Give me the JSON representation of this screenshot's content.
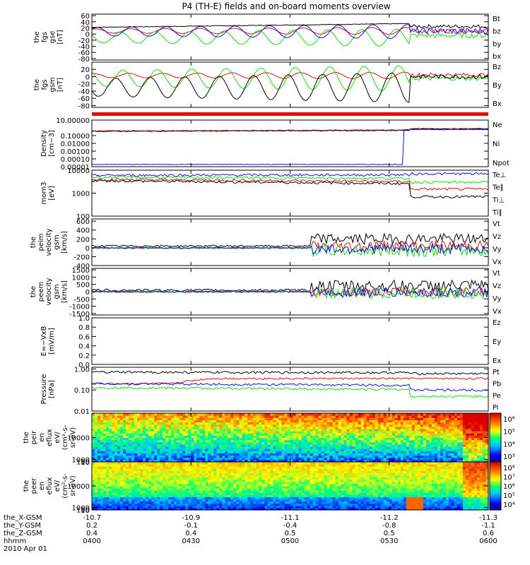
{
  "title": "P4 (TH-E) fields and on-board moments overview",
  "colors": {
    "black": "#000000",
    "red": "#e01010",
    "green": "#10dd10",
    "blue": "#1010e0"
  },
  "chart_data": [
    {
      "id": "fgs_gse",
      "type": "line",
      "ylabel": [
        "the",
        "fgs",
        "gse",
        "[nT]"
      ],
      "ylim": [
        -85,
        65
      ],
      "yticks": [
        60,
        40,
        20,
        0,
        -20,
        -40,
        -60,
        -80
      ],
      "series": [
        {
          "name": "Bt",
          "color": "black",
          "kind": "tot",
          "base": 22,
          "amp": 0,
          "noise": 2,
          "after": [
            25,
            6
          ]
        },
        {
          "name": "bz",
          "color": "red",
          "kind": "sin",
          "base": 10,
          "amp": 10,
          "phase": 0.8,
          "noise": 1,
          "after": [
            10,
            8
          ]
        },
        {
          "name": "by",
          "color": "green",
          "kind": "sin",
          "base": -12,
          "amp": 24,
          "phase": 2.6,
          "noise": 1,
          "after": [
            -5,
            8
          ]
        },
        {
          "name": "bx",
          "color": "blue",
          "kind": "sin",
          "base": 8,
          "amp": 20,
          "phase": 0.6,
          "noise": 1,
          "after": [
            10,
            10
          ]
        }
      ]
    },
    {
      "id": "fgs_gsm",
      "type": "line",
      "ylabel": [
        "the",
        "fgs",
        "gsm",
        "[nT]"
      ],
      "ylim": [
        -85,
        40
      ],
      "yticks": [
        20,
        0,
        -20,
        -40,
        -60,
        -80
      ],
      "series": [
        {
          "name": "Bz",
          "color": "red",
          "kind": "sin",
          "base": 3,
          "amp": 8,
          "phase": 1.2,
          "noise": 1,
          "after": [
            5,
            5
          ]
        },
        {
          "name": "By",
          "color": "green",
          "kind": "sin",
          "base": -5,
          "amp": 30,
          "phase": 2.2,
          "noise": 1,
          "after": [
            -5,
            6
          ]
        },
        {
          "name": "Bx",
          "color": "black",
          "kind": "sin",
          "base": -30,
          "amp": 35,
          "phase": 3.5,
          "noise": 1,
          "after": [
            0,
            6
          ]
        }
      ]
    },
    {
      "id": "density",
      "type": "line",
      "log": true,
      "ylabel": [
        "Density",
        "[cm−3]"
      ],
      "ylim": [
        1e-05,
        10
      ],
      "yticks": [
        10,
        0.1,
        0.01,
        0.001,
        0.0001,
        1e-05
      ],
      "yticklabels": [
        "10.00000",
        "0.10000",
        "0.01000",
        "0.00100",
        "0.00010",
        "0.00001"
      ],
      "series": [
        {
          "name": "Ne",
          "color": "red",
          "kind": "flat",
          "v": 0.4,
          "v2": 0.8
        },
        {
          "name": "Ni",
          "color": "black",
          "kind": "flat",
          "v": 0.35,
          "v2": 0.7
        },
        {
          "name": "Npot",
          "color": "blue",
          "kind": "jump",
          "v": 2e-05,
          "v2": 0.6
        }
      ]
    },
    {
      "id": "temp",
      "type": "line",
      "log": true,
      "ylabel": [
        "mom3",
        "[eV]"
      ],
      "ylim": [
        100,
        10000
      ],
      "yticks": [
        10000,
        1000,
        100
      ],
      "yticklabels": [
        "10000",
        "1000",
        "100"
      ],
      "series": [
        {
          "name": "Te⊥",
          "color": "red",
          "kind": "flat",
          "v": 4000,
          "v2": 1500
        },
        {
          "name": "Te∥",
          "color": "black",
          "kind": "flat",
          "v": 3500,
          "v2": 700
        },
        {
          "name": "Ti⊥",
          "color": "blue",
          "kind": "flat",
          "v": 6000,
          "v2": 7000
        },
        {
          "name": "Ti∥",
          "color": "green",
          "kind": "flat",
          "v": 5000,
          "v2": 3000
        }
      ]
    },
    {
      "id": "peim",
      "type": "line",
      "ylabel": [
        "the",
        "peim",
        "velocity",
        "gsm",
        "[km/s]"
      ],
      "ylim": [
        -400,
        650
      ],
      "yticks": [
        600,
        400,
        200,
        0,
        -200,
        -400
      ],
      "series": [
        {
          "name": "Vt",
          "color": "black",
          "kind": "vel",
          "v": 40,
          "v2": 200,
          "amp": 20,
          "amp2": 120
        },
        {
          "name": "Vz",
          "color": "red",
          "kind": "vel",
          "v": 0,
          "v2": 40,
          "amp": 15,
          "amp2": 120
        },
        {
          "name": "Vy",
          "color": "green",
          "kind": "vel",
          "v": -10,
          "v2": -60,
          "amp": 15,
          "amp2": 140
        },
        {
          "name": "Vx",
          "color": "blue",
          "kind": "vel",
          "v": 0,
          "v2": -20,
          "amp": 15,
          "amp2": 120
        }
      ]
    },
    {
      "id": "peem",
      "type": "line",
      "ylabel": [
        "the",
        "peem",
        "velocity",
        "gsm",
        "[km/s]"
      ],
      "ylim": [
        -1600,
        1600
      ],
      "yticks": [
        1500,
        1000,
        500,
        0,
        -500,
        -1000,
        -1500
      ],
      "series": [
        {
          "name": "Vt",
          "color": "black",
          "kind": "vel",
          "v": 100,
          "v2": 400,
          "amp": 80,
          "amp2": 400
        },
        {
          "name": "Vz",
          "color": "red",
          "kind": "vel",
          "v": 0,
          "v2": 0,
          "amp": 60,
          "amp2": 300
        },
        {
          "name": "Vy",
          "color": "green",
          "kind": "vel",
          "v": 0,
          "v2": -100,
          "amp": 60,
          "amp2": 400
        },
        {
          "name": "Vx",
          "color": "blue",
          "kind": "vel",
          "v": 0,
          "v2": -50,
          "amp": 60,
          "amp2": 350
        }
      ]
    },
    {
      "id": "exb",
      "type": "line",
      "ylabel": [
        "E=−VxB",
        "[mV/m]"
      ],
      "ylim": [
        0,
        1
      ],
      "yticks": [
        1.0,
        0.8,
        0.6,
        0.4,
        0.2,
        0.0
      ],
      "yticklabels": [
        "1.0",
        "0.8",
        "0.6",
        "0.4",
        "0.2",
        "0.0"
      ],
      "series": [
        {
          "name": "Ez",
          "color": "red",
          "kind": "none"
        },
        {
          "name": "Ey",
          "color": "green",
          "kind": "none"
        },
        {
          "name": "Ex",
          "color": "blue",
          "kind": "none"
        }
      ]
    },
    {
      "id": "pressure",
      "type": "line",
      "log": true,
      "ylabel": [
        "Pressure",
        "[nPa]"
      ],
      "ylim": [
        0.01,
        1.2
      ],
      "yticks": [
        1.0,
        0.1,
        0.01
      ],
      "yticklabels": [
        "1.00",
        "0.10",
        "0.01"
      ],
      "series": [
        {
          "name": "Pt",
          "color": "black",
          "kind": "flat",
          "v": 0.7,
          "v2": 0.6
        },
        {
          "name": "Pb",
          "color": "red",
          "kind": "press",
          "v": 0.2,
          "v2": 0.35
        },
        {
          "name": "Pe",
          "color": "green",
          "kind": "flat",
          "v": 0.13,
          "v2": 0.05
        },
        {
          "name": "Pi",
          "color": "blue",
          "kind": "flat",
          "v": 0.2,
          "v2": 0.1
        }
      ]
    },
    {
      "id": "peir",
      "type": "heatmap",
      "ylabel": [
        "the",
        "peir",
        "en",
        "eflux",
        "eV/",
        "(cm²-s-",
        "sr-eV)"
      ],
      "ylim": [
        7,
        20000
      ],
      "yticks": [
        10000,
        1000,
        100,
        10
      ],
      "yticklabels": [
        "10000",
        "1000",
        "100",
        "10"
      ],
      "colorbar": {
        "min_exp": 2.5,
        "max_exp": 6.5,
        "labels": [
          "10⁶",
          "10⁵",
          "10⁴",
          "10³"
        ]
      }
    },
    {
      "id": "peer",
      "type": "heatmap",
      "ylabel": [
        "the",
        "peer",
        "en",
        "eflux",
        "eV/",
        "(cm²-s-",
        "sr-eV)"
      ],
      "ylim": [
        7,
        20000
      ],
      "yticks": [
        10000,
        1000,
        100,
        10
      ],
      "yticklabels": [
        "10000",
        "1000",
        "100",
        "10"
      ],
      "colorbar": {
        "min_exp": 3.8,
        "max_exp": 8.2,
        "labels": [
          "10⁸",
          "10⁷",
          "10⁶",
          "10⁵",
          "10⁴"
        ]
      }
    }
  ],
  "xaxis": {
    "rows": [
      {
        "label": "the_X-GSM",
        "values": [
          "-10.7",
          "-10.9",
          "-11.1",
          "-11.2",
          "-11.3"
        ]
      },
      {
        "label": "the_Y-GSM",
        "values": [
          "0.2",
          "-0.1",
          "-0.4",
          "-0.8",
          "-1.1"
        ]
      },
      {
        "label": "the_Z-GSM",
        "values": [
          "0.4",
          "0.4",
          "0.5",
          "0.5",
          "0.6"
        ]
      },
      {
        "label": "hhmm",
        "values": [
          "0400",
          "0430",
          "0500",
          "0530",
          "0600"
        ]
      }
    ],
    "date": "2010 Apr 01"
  }
}
